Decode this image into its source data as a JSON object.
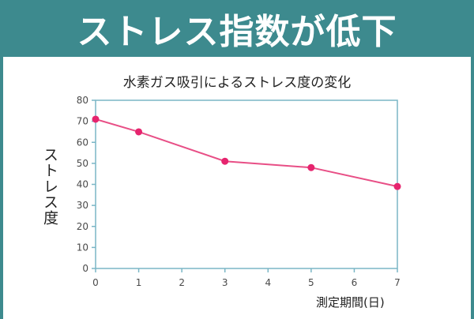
{
  "banner": {
    "title": "ストレス指数が低下"
  },
  "colors": {
    "banner": "#3d8a8e",
    "axis": "#7ab6c6",
    "line": "#e84f86",
    "marker": "#e6246e"
  },
  "chart_data": {
    "type": "line",
    "title": "水素ガス吸引によるストレス度の変化",
    "xlabel": "測定期間(日)",
    "ylabel": "ストレス度",
    "xlim": [
      0,
      7
    ],
    "ylim": [
      0,
      80
    ],
    "xticks": [
      0,
      1,
      2,
      3,
      4,
      5,
      6,
      7
    ],
    "yticks": [
      0,
      10,
      20,
      30,
      40,
      50,
      60,
      70,
      80
    ],
    "grid": false,
    "series": [
      {
        "x": [
          0,
          1,
          3,
          5,
          7
        ],
        "y": [
          71,
          65,
          51,
          48,
          39
        ]
      }
    ]
  }
}
